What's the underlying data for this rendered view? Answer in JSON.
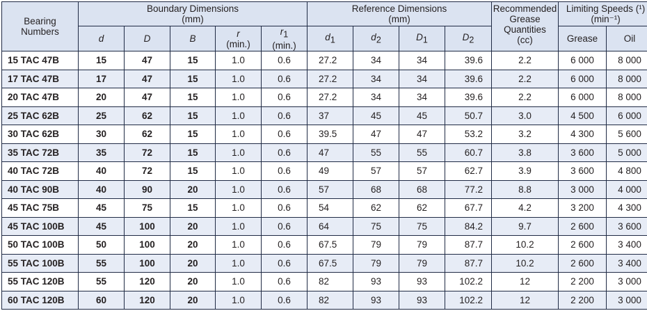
{
  "headers": {
    "bearing_numbers": "Bearing\nNumbers",
    "boundary": "Boundary Dimensions\n(mm)",
    "reference": "Reference Dimensions\n(mm)",
    "grease_qty": "Recommended\nGrease\nQuantities\n(cc)",
    "limiting": "Limiting Speeds (¹)\n(min⁻¹)",
    "d": "d",
    "D": "D",
    "B": "B",
    "r_sym": "r",
    "r_min": "(min.)",
    "r1_sym": "r",
    "r1_sub": "1",
    "r1_min": "(min.)",
    "d1": "d",
    "d1_sub": "1",
    "d2": "d",
    "d2_sub": "2",
    "D1": "D",
    "D1_sub": "1",
    "D2": "D",
    "D2_sub": "2",
    "grease": "Grease",
    "oil": "Oil"
  },
  "rows": [
    {
      "bearing": "15 TAC  47B",
      "d": "15",
      "D": "47",
      "B": "15",
      "r": "1.0",
      "r1": "0.6",
      "d1": "27.2",
      "d2": "34",
      "D1": "34",
      "D2": "39.6",
      "grease_qty": "2.2",
      "grease": "6 000",
      "oil": "8 000"
    },
    {
      "bearing": "17 TAC  47B",
      "d": "17",
      "D": "47",
      "B": "15",
      "r": "1.0",
      "r1": "0.6",
      "d1": "27.2",
      "d2": "34",
      "D1": "34",
      "D2": "39.6",
      "grease_qty": "2.2",
      "grease": "6 000",
      "oil": "8 000"
    },
    {
      "bearing": "20 TAC  47B",
      "d": "20",
      "D": "47",
      "B": "15",
      "r": "1.0",
      "r1": "0.6",
      "d1": "27.2",
      "d2": "34",
      "D1": "34",
      "D2": "39.6",
      "grease_qty": "2.2",
      "grease": "6 000",
      "oil": "8 000"
    },
    {
      "bearing": "25 TAC  62B",
      "d": "25",
      "D": "62",
      "B": "15",
      "r": "1.0",
      "r1": "0.6",
      "d1": "37",
      "d2": "45",
      "D1": "45",
      "D2": "50.7",
      "grease_qty": "3.0",
      "grease": "4 500",
      "oil": "6 000"
    },
    {
      "bearing": "30 TAC  62B",
      "d": "30",
      "D": "62",
      "B": "15",
      "r": "1.0",
      "r1": "0.6",
      "d1": "39.5",
      "d2": "47",
      "D1": "47",
      "D2": "53.2",
      "grease_qty": "3.2",
      "grease": "4 300",
      "oil": "5 600"
    },
    {
      "bearing": "35 TAC  72B",
      "d": "35",
      "D": "72",
      "B": "15",
      "r": "1.0",
      "r1": "0.6",
      "d1": "47",
      "d2": "55",
      "D1": "55",
      "D2": "60.7",
      "grease_qty": "3.8",
      "grease": "3 600",
      "oil": "5 000"
    },
    {
      "bearing": "40 TAC  72B",
      "d": "40",
      "D": "72",
      "B": "15",
      "r": "1.0",
      "r1": "0.6",
      "d1": "49",
      "d2": "57",
      "D1": "57",
      "D2": "62.7",
      "grease_qty": "3.9",
      "grease": "3 600",
      "oil": "4 800"
    },
    {
      "bearing": "40 TAC  90B",
      "d": "40",
      "D": "90",
      "B": "20",
      "r": "1.0",
      "r1": "0.6",
      "d1": "57",
      "d2": "68",
      "D1": "68",
      "D2": "77.2",
      "grease_qty": "8.8",
      "grease": "3 000",
      "oil": "4 000"
    },
    {
      "bearing": "45 TAC  75B",
      "d": "45",
      "D": "75",
      "B": "15",
      "r": "1.0",
      "r1": "0.6",
      "d1": "54",
      "d2": "62",
      "D1": "62",
      "D2": "67.7",
      "grease_qty": "4.2",
      "grease": "3 200",
      "oil": "4 300"
    },
    {
      "bearing": "45 TAC 100B",
      "d": "45",
      "D": "100",
      "B": "20",
      "r": "1.0",
      "r1": "0.6",
      "d1": "64",
      "d2": "75",
      "D1": "75",
      "D2": "84.2",
      "grease_qty": "9.7",
      "grease": "2 600",
      "oil": "3 600"
    },
    {
      "bearing": "50 TAC 100B",
      "d": "50",
      "D": "100",
      "B": "20",
      "r": "1.0",
      "r1": "0.6",
      "d1": "67.5",
      "d2": "79",
      "D1": "79",
      "D2": "87.7",
      "grease_qty": "10.2",
      "grease": "2 600",
      "oil": "3 400"
    },
    {
      "bearing": "55 TAC 100B",
      "d": "55",
      "D": "100",
      "B": "20",
      "r": "1.0",
      "r1": "0.6",
      "d1": "67.5",
      "d2": "79",
      "D1": "79",
      "D2": "87.7",
      "grease_qty": "10.2",
      "grease": "2 600",
      "oil": "3 400"
    },
    {
      "bearing": "55 TAC 120B",
      "d": "55",
      "D": "120",
      "B": "20",
      "r": "1.0",
      "r1": "0.6",
      "d1": "82",
      "d2": "93",
      "D1": "93",
      "D2": "102.2",
      "grease_qty": "12",
      "grease": "2 200",
      "oil": "3 000"
    },
    {
      "bearing": "60 TAC 120B",
      "d": "60",
      "D": "120",
      "B": "20",
      "r": "1.0",
      "r1": "0.6",
      "d1": "82",
      "d2": "93",
      "D1": "93",
      "D2": "102.2",
      "grease_qty": "12",
      "grease": "2 200",
      "oil": "3 000"
    }
  ]
}
